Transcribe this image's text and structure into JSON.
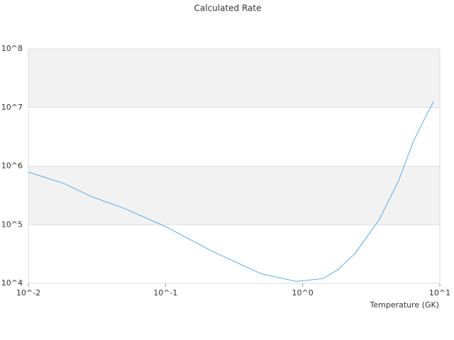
{
  "chart_data": {
    "type": "line",
    "title": "Calculated Rate",
    "x_label": "Temperature (GK)",
    "x": [
      0.01,
      0.018,
      0.029,
      0.05,
      0.1,
      0.22,
      0.5,
      0.9,
      1.4,
      1.8,
      2.4,
      3.6,
      5,
      6.4,
      8,
      9
    ],
    "values": [
      790000,
      510000,
      300000,
      190000,
      93000,
      35000,
      14500,
      10800,
      12000,
      17000,
      32000,
      120000,
      560000,
      2600000,
      7500000,
      12500000
    ],
    "color": "#5aa9e6",
    "log_x": true,
    "log_y": true,
    "grid": true,
    "xlim": [
      0.01,
      10
    ],
    "ylim": [
      10000,
      100000000
    ],
    "xticks": [
      {
        "value": 0.01,
        "label": "10^-2"
      },
      {
        "value": 0.1,
        "label": "10^-1"
      },
      {
        "value": 1,
        "label": "10^0"
      },
      {
        "value": 10,
        "label": "10^1"
      }
    ],
    "yticks": [
      {
        "value": 10000,
        "label": "10^4"
      },
      {
        "value": 100000,
        "label": "10^5"
      },
      {
        "value": 1000000,
        "label": "10^6"
      },
      {
        "value": 10000000,
        "label": "10^7"
      },
      {
        "value": 100000000,
        "label": "10^8"
      }
    ]
  }
}
